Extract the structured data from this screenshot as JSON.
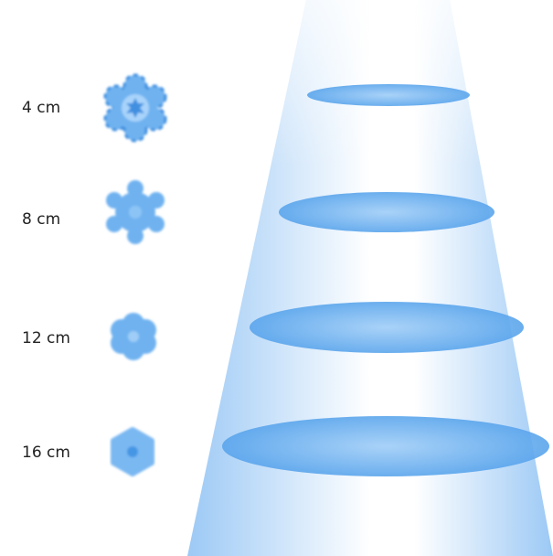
{
  "items": [
    {
      "label": "4 cm"
    },
    {
      "label": "8 cm"
    },
    {
      "label": "12 cm"
    },
    {
      "label": "16 cm"
    }
  ]
}
